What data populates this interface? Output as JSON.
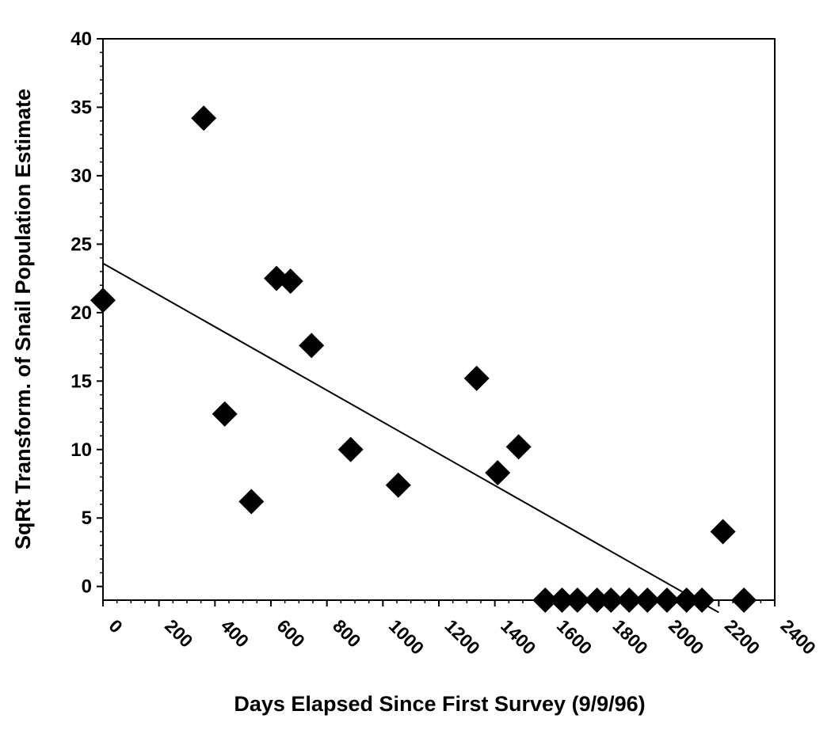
{
  "chart_data": {
    "type": "scatter",
    "title": "",
    "xlabel": "Days Elapsed Since First Survey (9/9/96)",
    "ylabel": "SqRt Transform. of Snail Population Estimate",
    "xlim": [
      0,
      2400
    ],
    "ylim": [
      -1,
      40
    ],
    "x_ticks": [
      0,
      200,
      400,
      600,
      800,
      1000,
      1200,
      1400,
      1600,
      1800,
      2000,
      2200,
      2400
    ],
    "y_ticks": [
      0,
      5,
      10,
      15,
      20,
      25,
      30,
      35,
      40
    ],
    "grid": false,
    "legend": "none",
    "marker": "diamond",
    "marker_color": "#000000",
    "series": [
      {
        "points": [
          {
            "x": 0,
            "y": 20.9
          },
          {
            "x": 360,
            "y": 34.2
          },
          {
            "x": 435,
            "y": 12.6
          },
          {
            "x": 530,
            "y": 6.2
          },
          {
            "x": 620,
            "y": 22.5
          },
          {
            "x": 670,
            "y": 22.3
          },
          {
            "x": 745,
            "y": 17.6
          },
          {
            "x": 885,
            "y": 10.0
          },
          {
            "x": 1055,
            "y": 7.4
          },
          {
            "x": 1335,
            "y": 15.2
          },
          {
            "x": 1410,
            "y": 8.3
          },
          {
            "x": 1485,
            "y": 10.2
          },
          {
            "x": 1580,
            "y": -1
          },
          {
            "x": 1640,
            "y": -1
          },
          {
            "x": 1695,
            "y": -1
          },
          {
            "x": 1765,
            "y": -1
          },
          {
            "x": 1815,
            "y": -1
          },
          {
            "x": 1880,
            "y": -1
          },
          {
            "x": 1945,
            "y": -1
          },
          {
            "x": 2015,
            "y": -1
          },
          {
            "x": 2085,
            "y": -1
          },
          {
            "x": 2140,
            "y": -1
          },
          {
            "x": 2215,
            "y": 4.0
          },
          {
            "x": 2290,
            "y": -1
          }
        ]
      }
    ],
    "trendline": {
      "type": "linear",
      "points": [
        {
          "x": 0,
          "y": 23.6
        },
        {
          "x": 2200,
          "y": -1.9
        }
      ]
    }
  }
}
